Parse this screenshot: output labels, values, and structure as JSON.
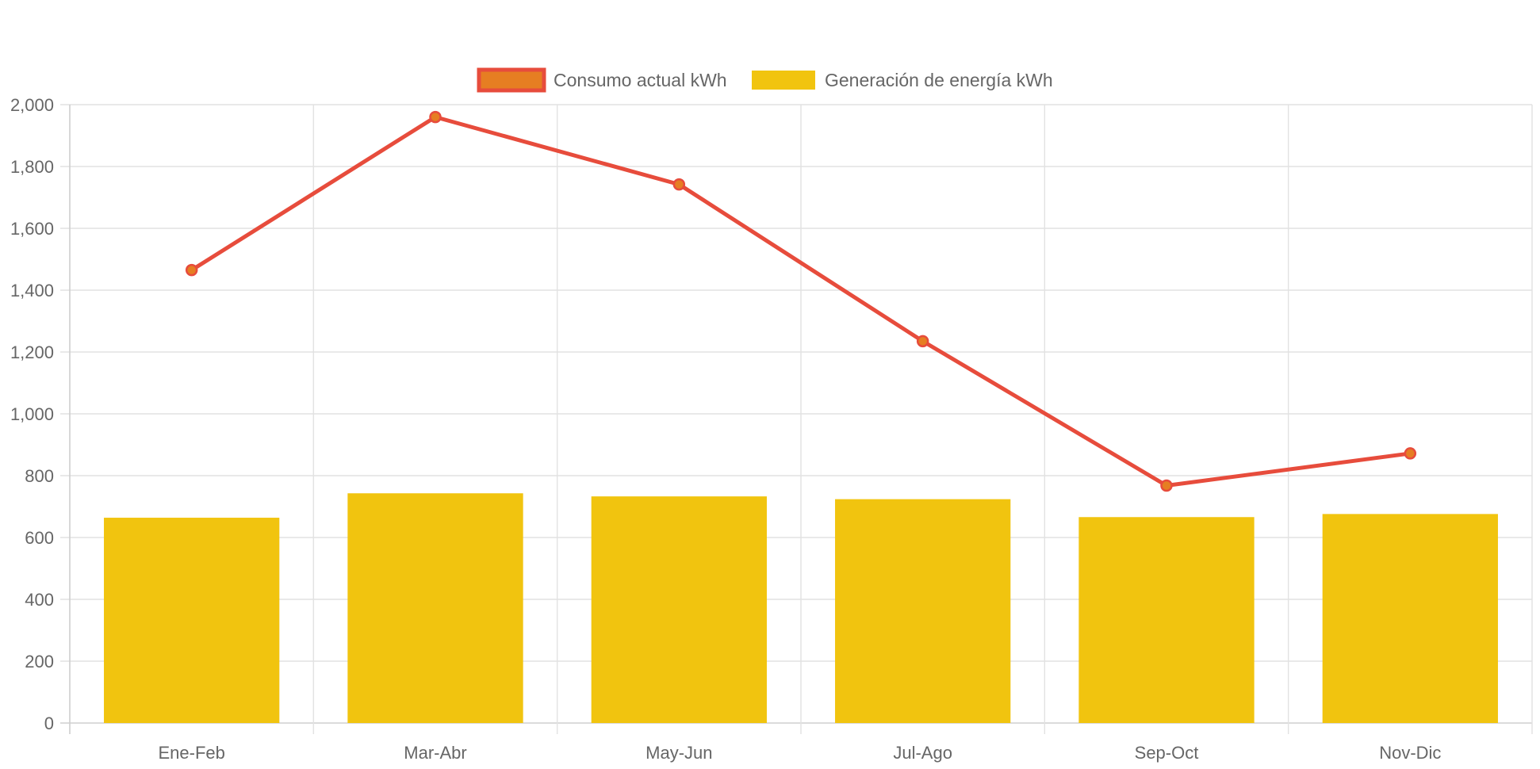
{
  "chart_data": {
    "type": "bar",
    "title": "",
    "xlabel": "",
    "ylabel": "",
    "categories": [
      "Ene-Feb",
      "Mar-Abr",
      "May-Jun",
      "Jul-Ago",
      "Sep-Oct",
      "Nov-Dic"
    ],
    "series": [
      {
        "name": "Consumo actual kWh",
        "type": "line",
        "values": [
          1465,
          1960,
          1742,
          1235,
          768,
          872
        ],
        "color": "#e74c3c",
        "point_color": "#e67e22"
      },
      {
        "name": "Generación de energía kWh",
        "type": "bar",
        "values": [
          664,
          743,
          733,
          724,
          666,
          676
        ],
        "color": "#f1c40f"
      }
    ],
    "ylim": [
      0,
      2000
    ],
    "yticks": [
      0,
      200,
      400,
      600,
      800,
      1000,
      1200,
      1400,
      1600,
      1800,
      2000
    ],
    "ytick_labels": [
      "0",
      "200",
      "400",
      "600",
      "800",
      "1,000",
      "1,200",
      "1,400",
      "1,600",
      "1,800",
      "2,000"
    ],
    "grid": true,
    "legend_position": "top-center"
  }
}
